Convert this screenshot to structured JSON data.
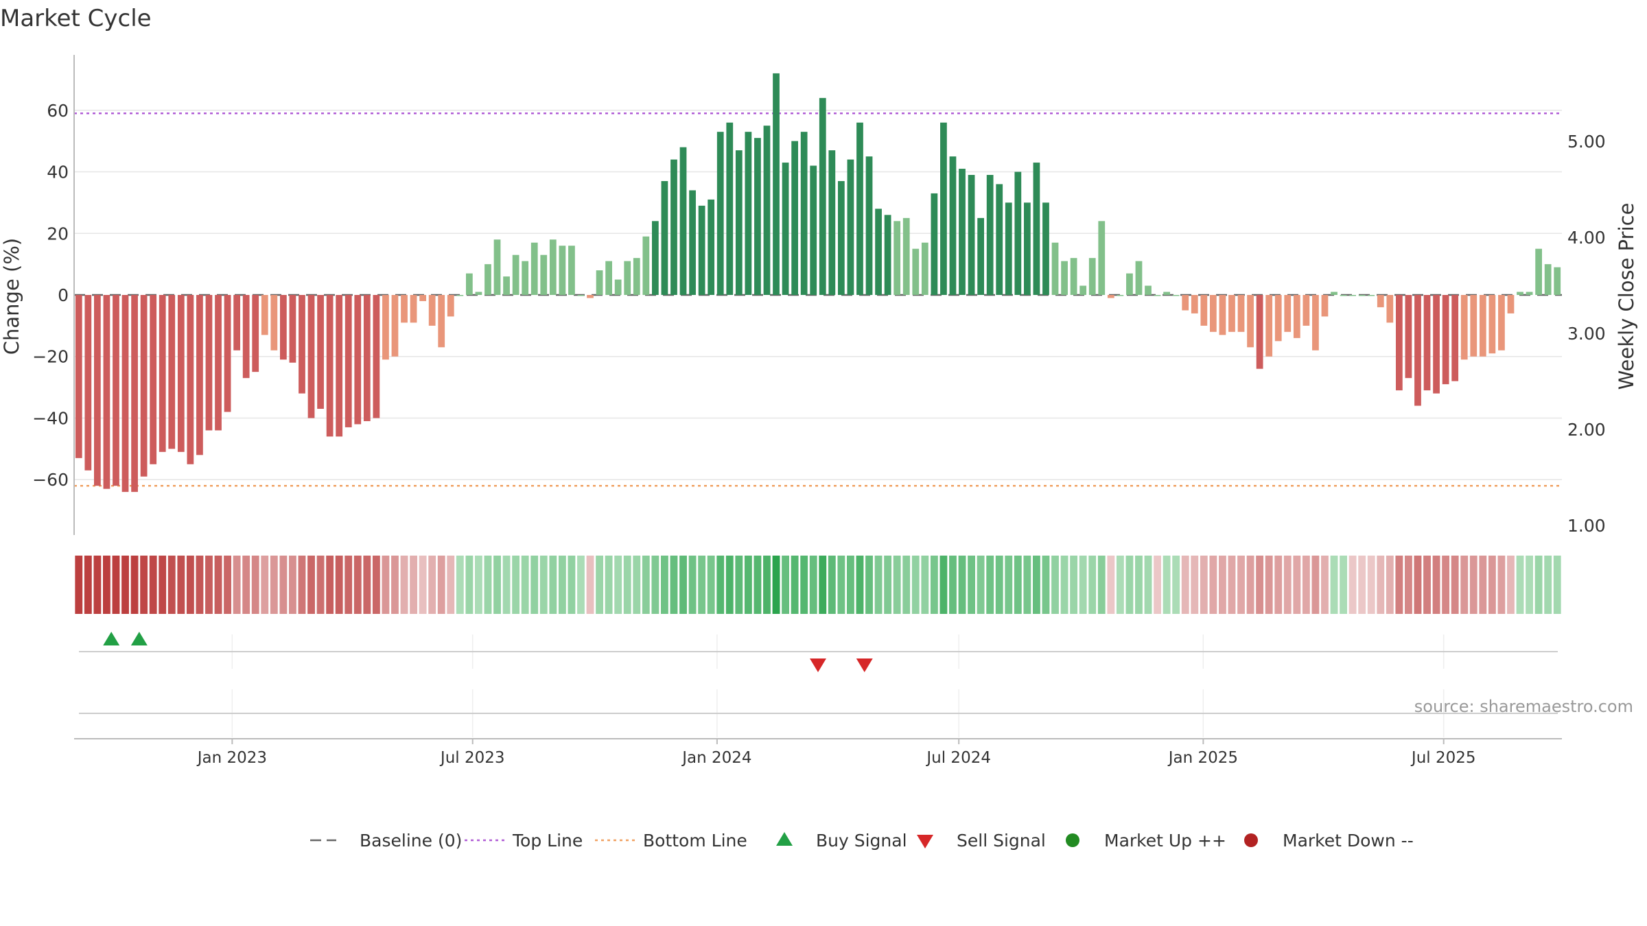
{
  "title": "Market Cycle",
  "source": "source: sharemaestro.com",
  "colors": {
    "up_dark": "#2e8b57",
    "up_light": "#82c08a",
    "down_dark": "#cd5c5c",
    "down_light": "#e9967a",
    "top_line": "#b05cd6",
    "bottom_line": "#f0a060",
    "baseline": "#666666",
    "buy": "#22a045",
    "sell": "#d62728",
    "market_up": "#228b22",
    "market_down": "#b22222",
    "grid": "#e6e6e6",
    "axis": "#bbbbbb",
    "text": "#333333"
  },
  "chart_data": {
    "type": "bar",
    "title": "Market Cycle",
    "ylabel": "Change (%)",
    "y2label": "Weekly Close Price",
    "ylim": [
      -78,
      78
    ],
    "y2lim": [
      0.9,
      5.9
    ],
    "yticks": [
      60,
      40,
      20,
      0,
      -20,
      -40,
      -60
    ],
    "ytick_labels": [
      "60",
      "40",
      "20",
      "0",
      "−20",
      "−40",
      "−60"
    ],
    "y2ticks": [
      5.0,
      4.0,
      3.0,
      2.0,
      1.0
    ],
    "y2tick_labels": [
      "5.00",
      "4.00",
      "3.00",
      "2.00",
      "1.00"
    ],
    "x_start": "2022-09-04",
    "x_end": "2025-09-28",
    "xticks": [
      "2023-01-01",
      "2023-07-01",
      "2024-01-01",
      "2024-07-01",
      "2025-01-01",
      "2025-07-01"
    ],
    "xtick_labels": [
      "Jan 2023",
      "Jul 2023",
      "Jan 2024",
      "Jul 2024",
      "Jan 2025",
      "Jul 2025"
    ],
    "top_line": 59,
    "bottom_line": -62,
    "baseline": 0,
    "grid": true,
    "legend_position": "bottom-center",
    "legend": [
      {
        "label": "Baseline (0)",
        "kind": "dash",
        "color": "#666666"
      },
      {
        "label": "Top Line",
        "kind": "dot",
        "color": "#b05cd6"
      },
      {
        "label": "Bottom Line",
        "kind": "dot",
        "color": "#f0a060"
      },
      {
        "label": "Buy Signal",
        "kind": "tri-up",
        "color": "#22a045"
      },
      {
        "label": "Sell Signal",
        "kind": "tri-down",
        "color": "#d62728"
      },
      {
        "label": "Market Up ++",
        "kind": "circle",
        "color": "#228b22"
      },
      {
        "label": "Market Down --",
        "kind": "circle",
        "color": "#b22222"
      }
    ],
    "values": [
      -53,
      -57,
      -62,
      -63,
      -62,
      -64,
      -64,
      -59,
      -55,
      -51,
      -50,
      -51,
      -55,
      -52,
      -44,
      -44,
      -38,
      -18,
      -27,
      -25,
      -13,
      -18,
      -21,
      -22,
      -32,
      -40,
      -37,
      -46,
      -46,
      -43,
      -42,
      -41,
      -40,
      -21,
      -20,
      -9,
      -9,
      -2,
      -10,
      -17,
      -7,
      0,
      7,
      1,
      10,
      18,
      6,
      13,
      11,
      17,
      13,
      18,
      16,
      16,
      0,
      -1,
      8,
      11,
      5,
      11,
      12,
      19,
      24,
      37,
      44,
      48,
      34,
      29,
      31,
      53,
      56,
      47,
      53,
      51,
      55,
      72,
      43,
      50,
      53,
      42,
      64,
      47,
      37,
      44,
      56,
      45,
      28,
      26,
      24,
      25,
      15,
      17,
      33,
      56,
      45,
      41,
      39,
      25,
      39,
      36,
      30,
      40,
      30,
      43,
      30,
      17,
      11,
      12,
      3,
      12,
      24,
      -1,
      0,
      7,
      11,
      3,
      0,
      1,
      0,
      -5,
      -6,
      -10,
      -12,
      -13,
      -12,
      -12,
      -17,
      -24,
      -20,
      -15,
      -12,
      -14,
      -10,
      -18,
      -7,
      1,
      0,
      0,
      0,
      0,
      -4,
      -9,
      -31,
      -27,
      -36,
      -31,
      -32,
      -29,
      -28,
      -21,
      -20,
      -20,
      -19,
      -18,
      -6,
      1,
      1,
      15,
      10,
      9
    ],
    "intensity": [
      -0.95,
      -0.95,
      -0.95,
      -0.95,
      -0.95,
      -0.95,
      -0.95,
      -0.9,
      -0.9,
      -0.9,
      -0.85,
      -0.85,
      -0.85,
      -0.8,
      -0.75,
      -0.75,
      -0.7,
      -0.45,
      -0.5,
      -0.5,
      -0.35,
      -0.4,
      -0.45,
      -0.45,
      -0.6,
      -0.7,
      -0.65,
      -0.75,
      -0.75,
      -0.7,
      -0.7,
      -0.7,
      -0.7,
      -0.4,
      -0.4,
      -0.25,
      -0.25,
      -0.15,
      -0.25,
      -0.35,
      -0.2,
      0.2,
      0.3,
      0.2,
      0.3,
      0.35,
      0.25,
      0.3,
      0.3,
      0.35,
      0.3,
      0.35,
      0.35,
      0.35,
      0.2,
      -0.15,
      0.3,
      0.3,
      0.25,
      0.3,
      0.3,
      0.4,
      0.45,
      0.55,
      0.6,
      0.65,
      0.55,
      0.5,
      0.5,
      0.7,
      0.75,
      0.65,
      0.7,
      0.7,
      0.75,
      0.95,
      0.6,
      0.7,
      0.7,
      0.6,
      0.85,
      0.65,
      0.55,
      0.6,
      0.75,
      0.6,
      0.45,
      0.45,
      0.4,
      0.4,
      0.35,
      0.35,
      0.5,
      0.75,
      0.6,
      0.6,
      0.55,
      0.45,
      0.55,
      0.55,
      0.5,
      0.55,
      0.5,
      0.6,
      0.5,
      0.35,
      0.3,
      0.3,
      0.25,
      0.3,
      0.4,
      -0.1,
      0.2,
      0.3,
      0.3,
      0.25,
      -0.1,
      0.2,
      0.2,
      -0.2,
      -0.2,
      -0.25,
      -0.3,
      -0.3,
      -0.3,
      -0.3,
      -0.35,
      -0.45,
      -0.4,
      -0.35,
      -0.3,
      -0.3,
      -0.3,
      -0.4,
      -0.25,
      0.2,
      0.2,
      -0.1,
      -0.1,
      -0.1,
      -0.2,
      -0.25,
      -0.55,
      -0.5,
      -0.6,
      -0.55,
      -0.55,
      -0.5,
      -0.5,
      -0.4,
      -0.4,
      -0.4,
      -0.4,
      -0.35,
      -0.2,
      0.2,
      0.2,
      0.3,
      0.25,
      0.25
    ],
    "buy_signals": [
      "2022-10-02",
      "2022-10-23"
    ],
    "sell_signals": [
      "2024-03-17",
      "2024-04-21"
    ]
  }
}
